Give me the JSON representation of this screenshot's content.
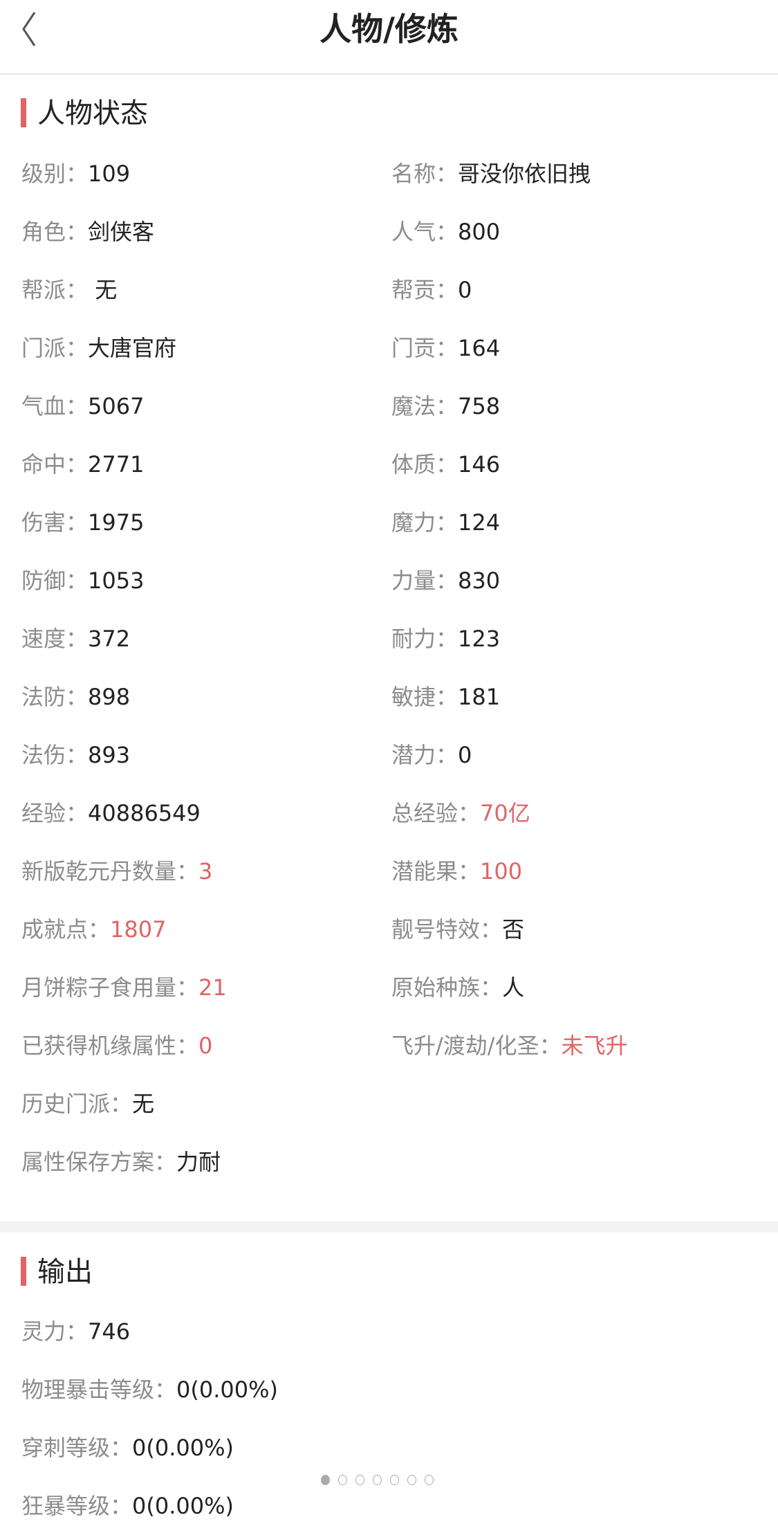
{
  "header": {
    "title": "人物/修炼",
    "back_icon": "chevron-left-icon"
  },
  "accent_color": "#e06464",
  "status": {
    "title": "人物状态",
    "rows": [
      [
        {
          "label": "级别：",
          "value": "109"
        },
        {
          "label": "名称：",
          "value": "哥没你依旧拽"
        }
      ],
      [
        {
          "label": "角色：",
          "value": "剑侠客"
        },
        {
          "label": "人气：",
          "value": "800"
        }
      ],
      [
        {
          "label": "帮派：",
          "value": " 无"
        },
        {
          "label": "帮贡：",
          "value": "0"
        }
      ],
      [
        {
          "label": "门派：",
          "value": "大唐官府"
        },
        {
          "label": "门贡：",
          "value": "164"
        }
      ],
      [
        {
          "label": "气血：",
          "value": "5067"
        },
        {
          "label": "魔法：",
          "value": "758"
        }
      ],
      [
        {
          "label": "命中：",
          "value": "2771"
        },
        {
          "label": "体质：",
          "value": "146"
        }
      ],
      [
        {
          "label": "伤害：",
          "value": "1975"
        },
        {
          "label": "魔力：",
          "value": "124"
        }
      ],
      [
        {
          "label": "防御：",
          "value": "1053"
        },
        {
          "label": "力量：",
          "value": "830"
        }
      ],
      [
        {
          "label": "速度：",
          "value": "372"
        },
        {
          "label": "耐力：",
          "value": "123"
        }
      ],
      [
        {
          "label": "法防：",
          "value": "898"
        },
        {
          "label": "敏捷：",
          "value": "181"
        }
      ],
      [
        {
          "label": "法伤：",
          "value": "893"
        },
        {
          "label": "潜力：",
          "value": "0"
        }
      ],
      [
        {
          "label": "经验：",
          "value": "40886549"
        },
        {
          "label": "总经验：",
          "value": "70亿",
          "highlight": true
        }
      ],
      [
        {
          "label": "新版乾元丹数量：",
          "value": "3",
          "highlight": true
        },
        {
          "label": "潜能果：",
          "value": "100",
          "highlight": true
        }
      ],
      [
        {
          "label": "成就点：",
          "value": "1807",
          "highlight": true
        },
        {
          "label": "靓号特效：",
          "value": "否"
        }
      ],
      [
        {
          "label": "月饼粽子食用量：",
          "value": "21",
          "highlight": true
        },
        {
          "label": "原始种族：",
          "value": "人"
        }
      ],
      [
        {
          "label": "已获得机缘属性：",
          "value": "0",
          "highlight": true
        },
        {
          "label": "飞升/渡劫/化圣：",
          "value": "未飞升",
          "highlight": true
        }
      ],
      [
        {
          "label": "历史门派：",
          "value": "无"
        }
      ],
      [
        {
          "label": "属性保存方案：",
          "value": "力耐"
        }
      ]
    ]
  },
  "output": {
    "title": "输出",
    "rows": [
      [
        {
          "label": "灵力：",
          "value": "746"
        }
      ],
      [
        {
          "label": "物理暴击等级：",
          "value": "0(0.00%)"
        }
      ],
      [
        {
          "label": "穿刺等级：",
          "value": "0(0.00%)"
        }
      ],
      [
        {
          "label": "狂暴等级：",
          "value": "0(0.00%)"
        }
      ]
    ]
  },
  "pager": {
    "total": 7,
    "active": 1
  }
}
